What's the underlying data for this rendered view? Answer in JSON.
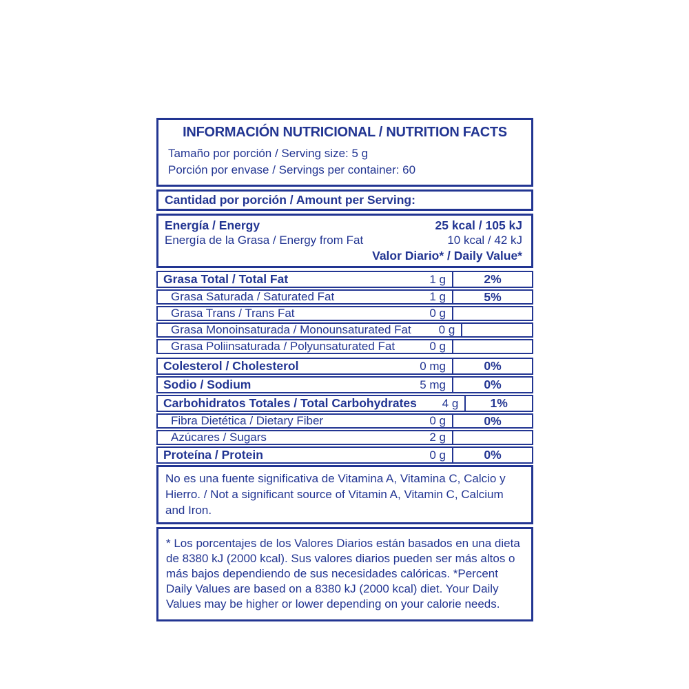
{
  "colors": {
    "accent": "#223592",
    "background": "#ffffff"
  },
  "header": {
    "title": "INFORMACIÓN NUTRICIONAL / NUTRITION FACTS",
    "serving_size": "Tamaño por porción / Serving size: 5 g",
    "servings_per_container": "Porción por envase / Servings per container: 60"
  },
  "amount_per_serving_label": "Cantidad por porción / Amount per Serving:",
  "energy": {
    "label": "Energía / Energy",
    "value": "25 kcal / 105 kJ",
    "fat_label": "Energía de la Grasa / Energy from Fat",
    "fat_value": "10 kcal / 42 kJ",
    "daily_value_header": "Valor Diario* / Daily Value*"
  },
  "nutrients": [
    {
      "label": "Grasa Total / Total Fat",
      "amount": "1 g",
      "dv": "2%"
    },
    {
      "label": "Grasa Saturada / Saturated Fat",
      "amount": "1 g",
      "dv": "5%"
    },
    {
      "label": "Grasa Trans / Trans Fat",
      "amount": "0 g",
      "dv": ""
    },
    {
      "label": "Grasa Monoinsaturada / Monounsaturated Fat",
      "amount": "0 g",
      "dv": ""
    },
    {
      "label": "Grasa Poliinsaturada / Polyunsaturated Fat",
      "amount": "0 g",
      "dv": ""
    },
    {
      "label": "Colesterol / Cholesterol",
      "amount": "0 mg",
      "dv": "0%"
    },
    {
      "label": "Sodio / Sodium",
      "amount": "5 mg",
      "dv": "0%"
    },
    {
      "label": "Carbohidratos Totales / Total Carbohydrates",
      "amount": "4 g",
      "dv": "1%"
    },
    {
      "label": "Fibra Dietética / Dietary Fiber",
      "amount": "0 g",
      "dv": "0%"
    },
    {
      "label": "Azúcares / Sugars",
      "amount": "2 g",
      "dv": ""
    },
    {
      "label": "Proteína / Protein",
      "amount": "0 g",
      "dv": "0%"
    }
  ],
  "notes": {
    "vitamins": "No es una fuente significativa de Vitamina A, Vitamina C, Calcio y Hierro. / Not a significant source of Vitamin A, Vitamin C, Calcium and Iron.",
    "daily_values": "* Los porcentajes de los Valores Diarios están basados en una dieta de 8380 kJ (2000 kcal). Sus valores diarios pueden ser más altos o más bajos dependiendo de sus necesidades calóricas. *Percent Daily Values are based on a 8380 kJ (2000 kcal) diet. Your Daily Values may be higher or lower depending on your calorie needs."
  }
}
